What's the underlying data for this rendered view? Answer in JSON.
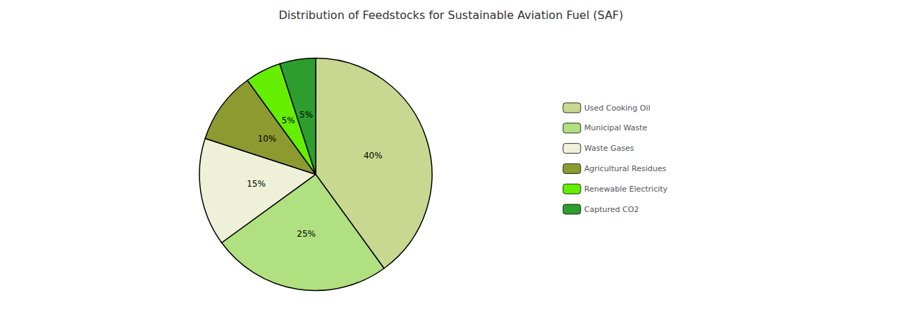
{
  "chart_data": {
    "type": "pie",
    "title": "Distribution of Feedstocks for Sustainable Aviation Fuel (SAF)",
    "categories": [
      "Used Cooking Oil",
      "Municipal Waste",
      "Waste Gases",
      "Agricultural Residues",
      "Renewable Electricity",
      "Captured CO2"
    ],
    "values": [
      40,
      25,
      15,
      10,
      5,
      5
    ],
    "value_labels": [
      "40%",
      "25%",
      "15%",
      "10%",
      "5%",
      "5%"
    ],
    "colors": [
      "#c8d890",
      "#b0e080",
      "#eef0d8",
      "#8c9a30",
      "#66ee00",
      "#2d9e2d"
    ],
    "data_labels": true,
    "legend": "right"
  }
}
